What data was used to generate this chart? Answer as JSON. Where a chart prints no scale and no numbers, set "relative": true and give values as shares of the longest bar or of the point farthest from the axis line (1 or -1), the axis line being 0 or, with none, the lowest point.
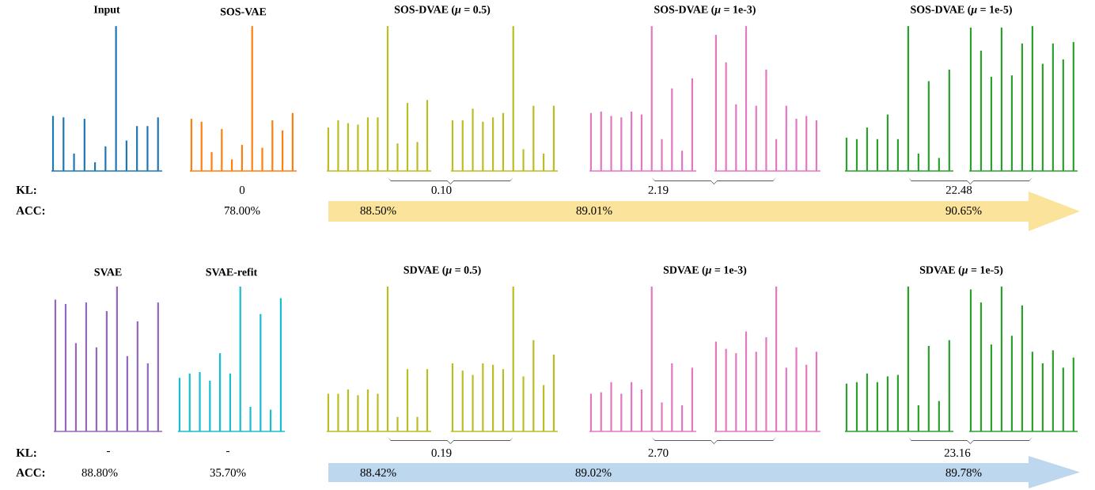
{
  "chart_data": [
    {
      "type": "bar",
      "relative": true,
      "title": "Input",
      "color": "#1f77b4",
      "categories": [
        null,
        null,
        null,
        null,
        null,
        null,
        null,
        null,
        null,
        null,
        null
      ],
      "values": [
        0.38,
        0.37,
        0.12,
        0.36,
        0.06,
        0.17,
        1,
        0.21,
        0.31,
        0.31,
        0.37
      ]
    },
    {
      "type": "bar",
      "relative": true,
      "title": "SOS-VAE",
      "color": "#ff7f0e",
      "categories": [
        null,
        null,
        null,
        null,
        null,
        null,
        null,
        null,
        null,
        null,
        null
      ],
      "values": [
        0.36,
        0.34,
        0.13,
        0.29,
        0.08,
        0.18,
        1,
        0.16,
        0.35,
        0.28,
        0.4
      ],
      "annotations": [
        "0",
        "78.00%"
      ]
    },
    {
      "type": "bar",
      "relative": true,
      "title": "SOS-DVAE (*μ* = 0.5)",
      "color": "#bcbd22",
      "categories": [
        null,
        null,
        null,
        null,
        null,
        null,
        null,
        null,
        null,
        null,
        null
      ],
      "values": [
        0.3,
        0.35,
        0.33,
        0.32,
        0.37,
        0.37,
        1,
        0.19,
        0.47,
        0.2,
        0.49
      ],
      "annotations": [
        "0.10",
        "88.50%"
      ]
    },
    {
      "type": "bar",
      "relative": true,
      "color": "#bcbd22",
      "categories": [
        null,
        null,
        null,
        null,
        null,
        null,
        null,
        null,
        null,
        null,
        null
      ],
      "values": [
        0.35,
        0.35,
        0.43,
        0.34,
        0.37,
        0.4,
        1,
        0.15,
        0.45,
        0.12,
        0.45
      ]
    },
    {
      "type": "bar",
      "relative": true,
      "title": "SOS-DVAE (*μ* = 1e-3)",
      "color": "#e377c2",
      "categories": [
        null,
        null,
        null,
        null,
        null,
        null,
        null,
        null,
        null,
        null,
        null
      ],
      "values": [
        0.4,
        0.41,
        0.38,
        0.37,
        0.41,
        0.39,
        1,
        0.22,
        0.57,
        0.14,
        0.64
      ],
      "annotations": [
        "2.19",
        "89.01%"
      ]
    },
    {
      "type": "bar",
      "relative": true,
      "color": "#e377c2",
      "categories": [
        null,
        null,
        null,
        null,
        null,
        null,
        null,
        null,
        null,
        null,
        null
      ],
      "values": [
        0.94,
        0.75,
        0.46,
        1,
        0.45,
        0.7,
        0.22,
        0.45,
        0.36,
        0.38,
        0.35
      ]
    },
    {
      "type": "bar",
      "relative": true,
      "title": "SOS-DVAE (*μ* = 1e-5)",
      "color": "#2ca02c",
      "categories": [
        null,
        null,
        null,
        null,
        null,
        null,
        null,
        null,
        null,
        null,
        null
      ],
      "values": [
        0.23,
        0.22,
        0.3,
        0.22,
        0.39,
        0.22,
        1,
        0.12,
        0.62,
        0.09,
        0.7
      ],
      "annotations": [
        "22.48",
        "90.65%"
      ]
    },
    {
      "type": "bar",
      "relative": true,
      "color": "#2ca02c",
      "categories": [
        null,
        null,
        null,
        null,
        null,
        null,
        null,
        null,
        null,
        null,
        null
      ],
      "values": [
        0.99,
        0.83,
        0.65,
        0.99,
        0.66,
        0.88,
        1,
        0.74,
        0.88,
        0.77,
        0.89
      ]
    },
    {
      "type": "other",
      "annotations": [
        "KL:",
        "ACC:"
      ]
    },
    {
      "type": "bar",
      "relative": true,
      "title": "SVAE",
      "color": "#9467bd",
      "categories": [
        null,
        null,
        null,
        null,
        null,
        null,
        null,
        null,
        null,
        null,
        null
      ],
      "values": [
        0.91,
        0.88,
        0.61,
        0.89,
        0.58,
        0.83,
        1,
        0.52,
        0.76,
        0.47,
        0.89
      ],
      "annotations": [
        "-",
        "88.80%"
      ]
    },
    {
      "type": "bar",
      "relative": true,
      "title": "SVAE-refit",
      "color": "#17becf",
      "categories": [
        null,
        null,
        null,
        null,
        null,
        null,
        null,
        null,
        null,
        null,
        null
      ],
      "values": [
        0.37,
        0.4,
        0.41,
        0.35,
        0.54,
        0.4,
        1,
        0.17,
        0.81,
        0.15,
        0.92
      ],
      "annotations": [
        "-",
        "35.70%"
      ]
    },
    {
      "type": "bar",
      "relative": true,
      "title": "SDVAE (*μ* = 0.5)",
      "color": "#bcbd22",
      "categories": [
        null,
        null,
        null,
        null,
        null,
        null,
        null,
        null,
        null,
        null,
        null
      ],
      "values": [
        0.26,
        0.26,
        0.29,
        0.25,
        0.29,
        0.26,
        1,
        0.1,
        0.43,
        0.1,
        0.43
      ],
      "annotations": [
        "0.19",
        "88.42%"
      ]
    },
    {
      "type": "bar",
      "relative": true,
      "color": "#bcbd22",
      "categories": [
        null,
        null,
        null,
        null,
        null,
        null,
        null,
        null,
        null,
        null,
        null
      ],
      "values": [
        0.47,
        0.42,
        0.39,
        0.47,
        0.46,
        0.43,
        1,
        0.38,
        0.63,
        0.32,
        0.53
      ]
    },
    {
      "type": "bar",
      "relative": true,
      "title": "SDVAE (*μ* = 1e-3)",
      "color": "#e377c2",
      "categories": [
        null,
        null,
        null,
        null,
        null,
        null,
        null,
        null,
        null,
        null,
        null
      ],
      "values": [
        0.26,
        0.27,
        0.34,
        0.26,
        0.34,
        0.29,
        1,
        0.2,
        0.47,
        0.18,
        0.44
      ],
      "annotations": [
        "2.70",
        "89.02%"
      ]
    },
    {
      "type": "bar",
      "relative": true,
      "color": "#e377c2",
      "categories": [
        null,
        null,
        null,
        null,
        null,
        null,
        null,
        null,
        null,
        null,
        null
      ],
      "values": [
        0.62,
        0.57,
        0.54,
        0.69,
        0.55,
        0.65,
        1,
        0.44,
        0.58,
        0.46,
        0.55
      ]
    },
    {
      "type": "bar",
      "relative": true,
      "title": "SDVAE (*μ* = 1e-5)",
      "color": "#2ca02c",
      "categories": [
        null,
        null,
        null,
        null,
        null,
        null,
        null,
        null,
        null,
        null,
        null
      ],
      "values": [
        0.33,
        0.34,
        0.4,
        0.34,
        0.38,
        0.39,
        1,
        0.18,
        0.59,
        0.21,
        0.63
      ],
      "annotations": [
        "23.16",
        "89.78%"
      ]
    },
    {
      "type": "bar",
      "relative": true,
      "color": "#2ca02c",
      "categories": [
        null,
        null,
        null,
        null,
        null,
        null,
        null,
        null,
        null,
        null,
        null
      ],
      "values": [
        0.98,
        0.89,
        0.6,
        1,
        0.66,
        0.87,
        0.55,
        0.47,
        0.56,
        0.44,
        0.51
      ]
    },
    {
      "type": "other",
      "annotations": [
        "KL:",
        "ACC:"
      ]
    }
  ]
}
